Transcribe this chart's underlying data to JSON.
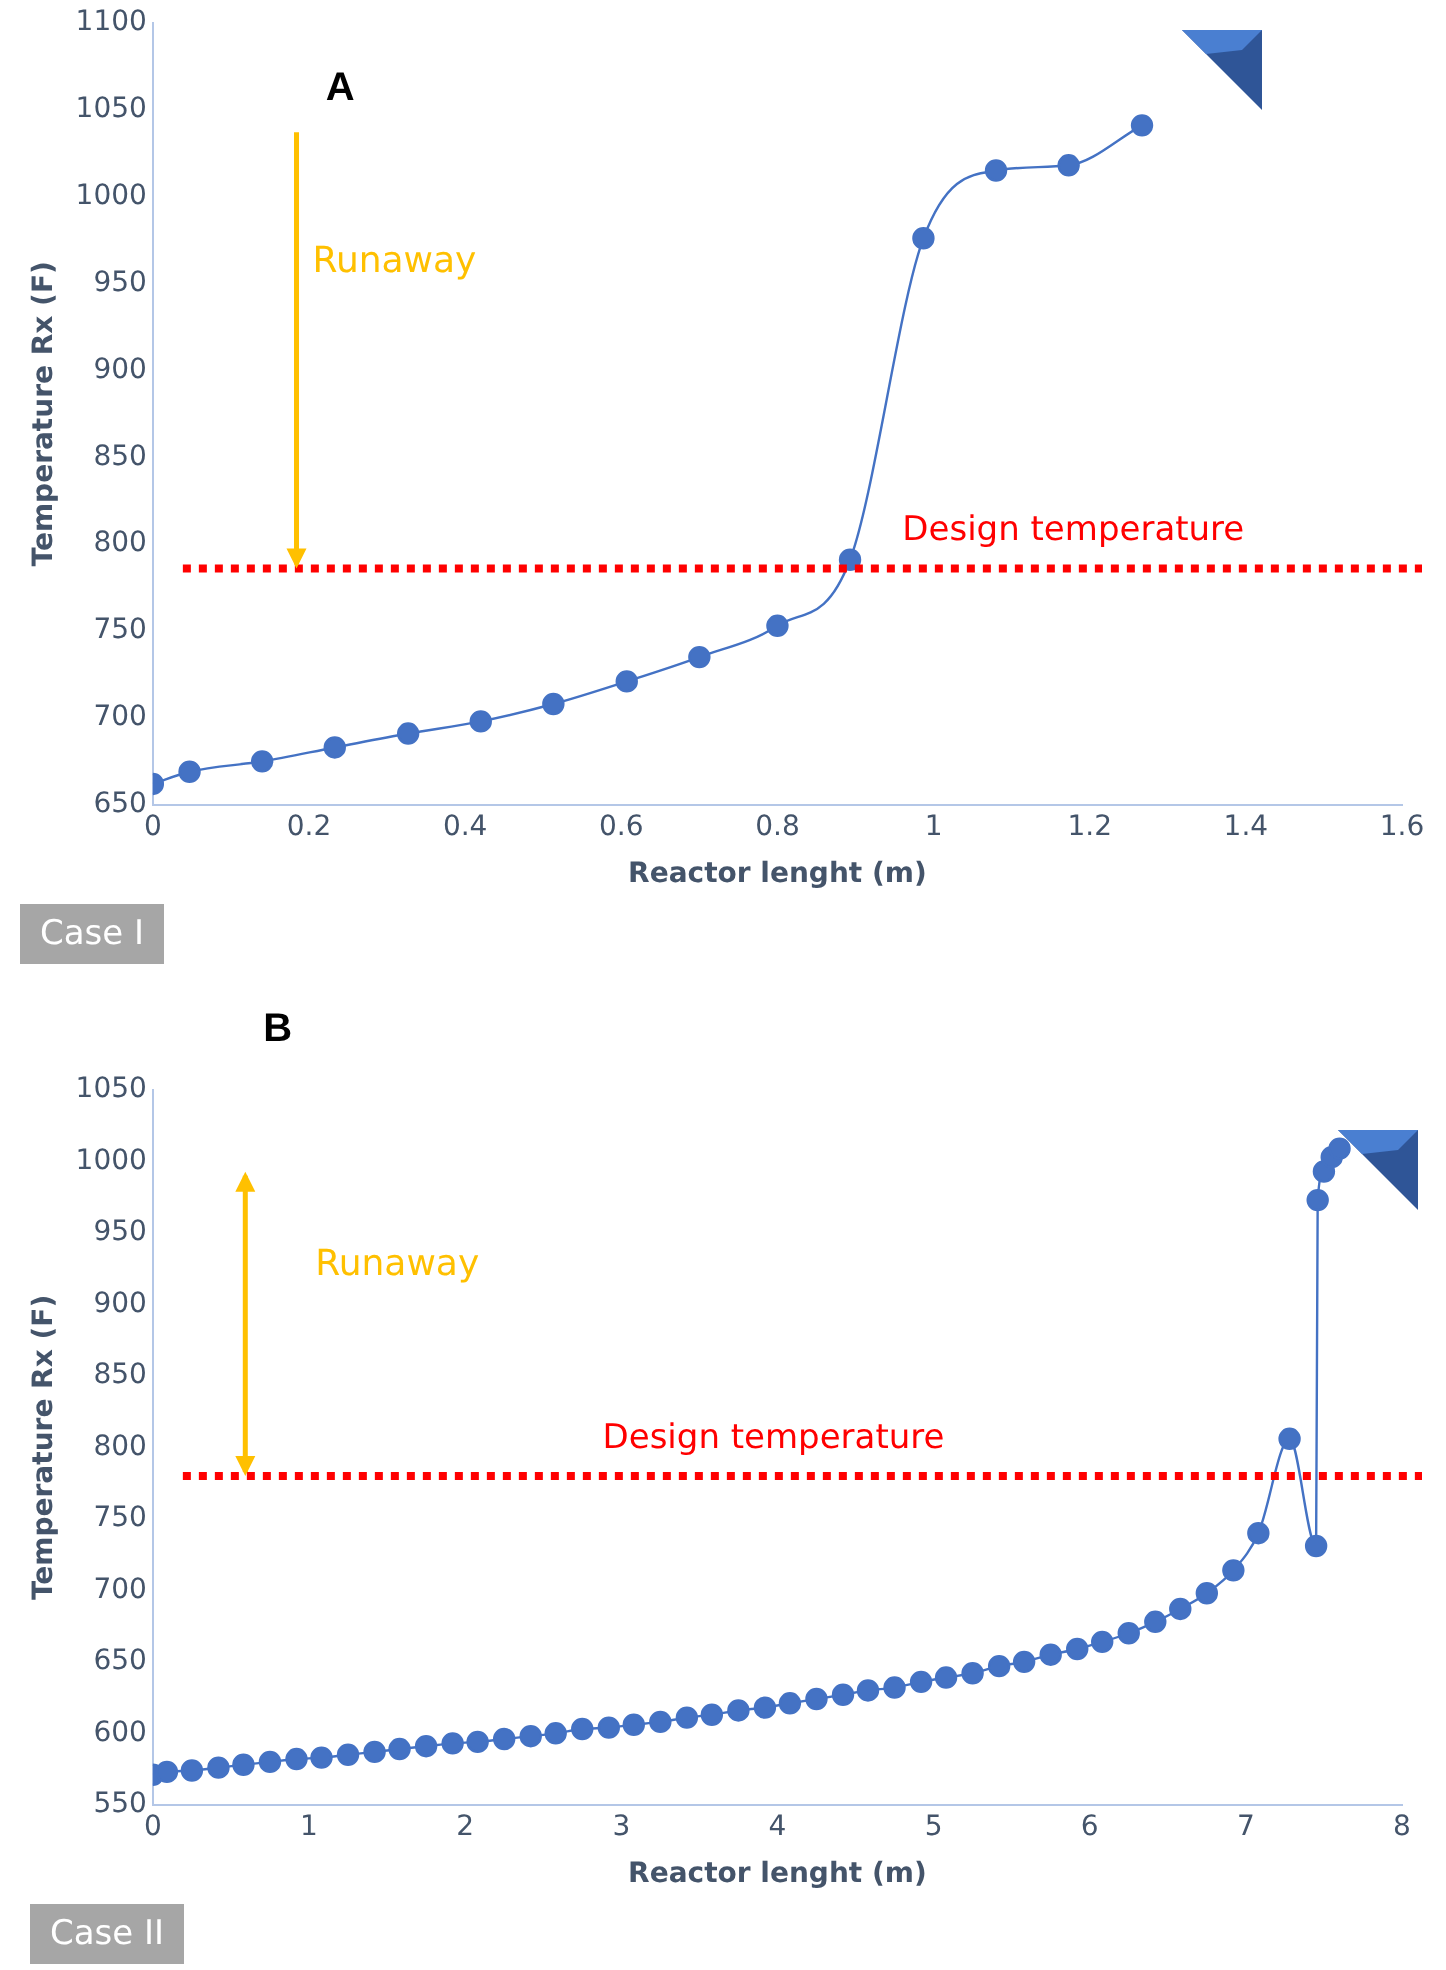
{
  "chart_data": [
    {
      "type": "line",
      "title": "A",
      "xlabel": "Reactor lenght (m)",
      "ylabel": "Temperature Rx (F)",
      "xlim": [
        0,
        1.6
      ],
      "xticks": [
        0,
        0.2,
        0.4,
        0.6,
        0.8,
        1,
        1.2,
        1.4,
        1.6
      ],
      "ylim": [
        650,
        1100
      ],
      "yticks": [
        650,
        700,
        750,
        800,
        850,
        900,
        950,
        1000,
        1050,
        1100
      ],
      "grid": false,
      "legend": false,
      "marker": "circle",
      "line_style": "solid",
      "x": [
        0,
        0.047,
        0.14,
        0.233,
        0.327,
        0.42,
        0.513,
        0.607,
        0.7,
        0.8,
        0.893,
        0.987,
        1.08,
        1.173,
        1.267
      ],
      "series": [
        {
          "color": "#4472c4",
          "values": [
            662,
            669,
            675,
            683,
            691,
            698,
            708,
            721,
            735,
            753,
            791,
            976,
            1015,
            1018,
            1041
          ]
        }
      ],
      "ref_lines": [
        {
          "axis": "y",
          "value": 786,
          "label": "Design temperature",
          "color": "#ff0000",
          "line_style": "dotted"
        }
      ],
      "annotations": [
        "Runaway",
        "Case I"
      ]
    },
    {
      "type": "line",
      "title": "B",
      "xlabel": "Reactor lenght (m)",
      "ylabel": "Temperature Rx (F)",
      "xlim": [
        0,
        8
      ],
      "xticks": [
        0,
        1,
        2,
        3,
        4,
        5,
        6,
        7,
        8
      ],
      "ylim": [
        550,
        1050
      ],
      "yticks": [
        550,
        600,
        650,
        700,
        750,
        800,
        850,
        900,
        950,
        1000,
        1050
      ],
      "grid": false,
      "legend": false,
      "marker": "circle",
      "line_style": "solid",
      "x": [
        0,
        0.09,
        0.25,
        0.42,
        0.58,
        0.75,
        0.92,
        1.08,
        1.25,
        1.42,
        1.58,
        1.75,
        1.92,
        2.08,
        2.25,
        2.42,
        2.58,
        2.75,
        2.92,
        3.08,
        3.25,
        3.42,
        3.58,
        3.75,
        3.92,
        4.08,
        4.25,
        4.42,
        4.58,
        4.75,
        4.92,
        5.08,
        5.25,
        5.42,
        5.58,
        5.75,
        5.92,
        6.08,
        6.25,
        6.42,
        6.58,
        6.75,
        6.92,
        7.08,
        7.28,
        7.45,
        7.46,
        7.5,
        7.55,
        7.6
      ],
      "series": [
        {
          "color": "#4472c4",
          "values": [
            571,
            573,
            574,
            576,
            578,
            580,
            582,
            583,
            585,
            587,
            589,
            591,
            593,
            594,
            596,
            598,
            600,
            603,
            604,
            606,
            608,
            611,
            613,
            616,
            618,
            621,
            624,
            627,
            630,
            632,
            636,
            639,
            642,
            647,
            650,
            655,
            659,
            664,
            670,
            678,
            687,
            698,
            714,
            740,
            806,
            731,
            973,
            993,
            1003,
            1009
          ]
        }
      ],
      "ref_lines": [
        {
          "axis": "y",
          "value": 780,
          "label": "Design temperature",
          "color": "#ff0000",
          "line_style": "dotted"
        }
      ],
      "annotations": [
        "Runaway",
        "Case II"
      ]
    }
  ]
}
